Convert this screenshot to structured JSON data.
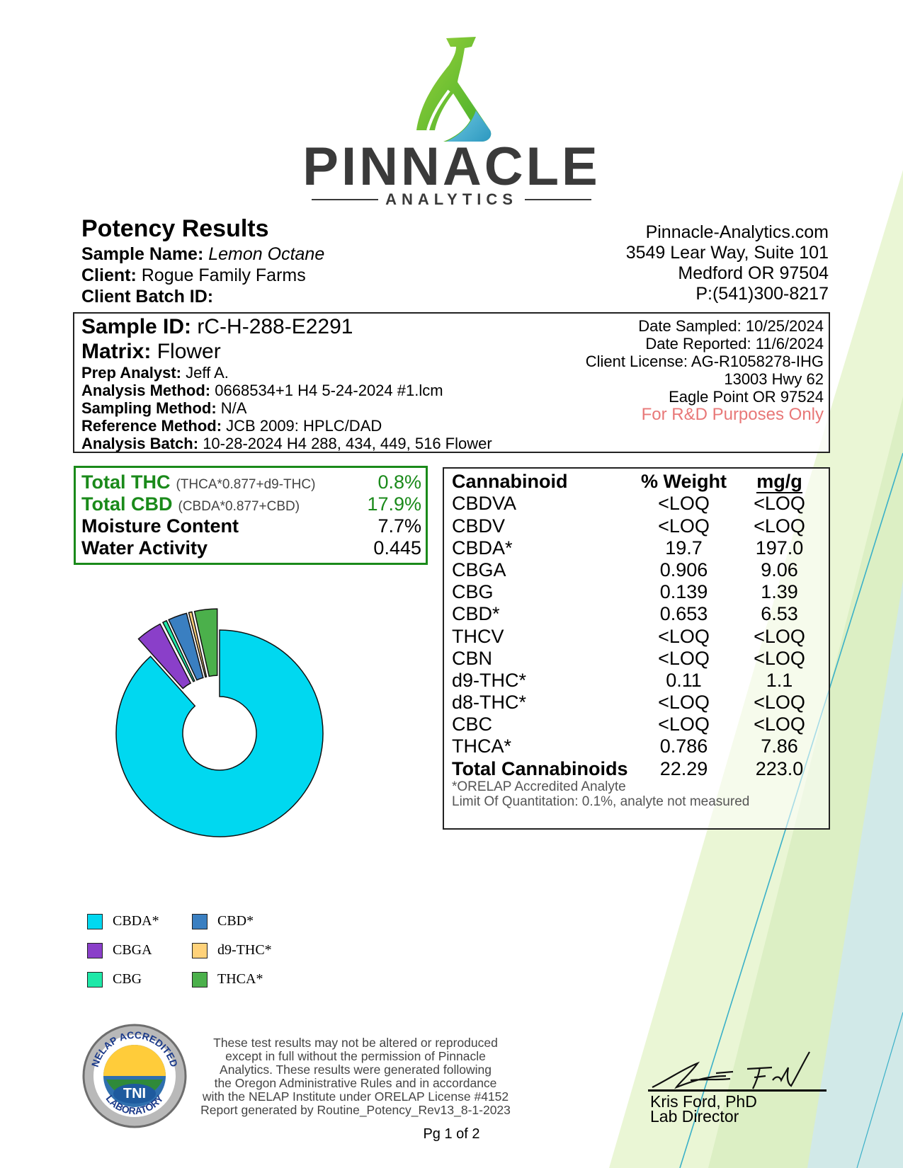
{
  "brand": {
    "name": "PINNACLE",
    "subtitle": "ANALYTICS"
  },
  "report": {
    "title": "Potency Results",
    "sample_name_label": "Sample Name:",
    "sample_name": "Lemon Octane",
    "client_label": "Client:",
    "client": "Rogue Family Farms",
    "client_batch_label": "Client Batch ID:",
    "client_batch": ""
  },
  "lab_address": {
    "website": "Pinnacle-Analytics.com",
    "street": "3549 Lear Way, Suite 101",
    "city": "Medford OR 97504",
    "phone": "P:(541)300-8217"
  },
  "sample": {
    "id_label": "Sample ID:",
    "id": "rC-H-288-E2291",
    "matrix_label": "Matrix:",
    "matrix": "Flower",
    "prep_label": "Prep Analyst:",
    "prep": "Jeff A.",
    "method_label": "Analysis Method:",
    "method": "0668534+1 H4 5-24-2024 #1.lcm",
    "sampling_label": "Sampling Method:",
    "sampling": "N/A",
    "reference_label": "Reference Method:",
    "reference": "JCB 2009: HPLC/DAD",
    "batch_label": "Analysis Batch:",
    "batch": "10-28-2024 H4 288, 434, 449, 516 Flower",
    "date_sampled_label": "Date Sampled:",
    "date_sampled": "10/25/2024",
    "date_reported_label": "Date Reported:",
    "date_reported": "11/6/2024",
    "license_label": "Client License:",
    "license": "AG-R1058278-IHG",
    "client_street": "13003 Hwy 62",
    "client_city": "Eagle Point OR 97524",
    "rd_note": "For R&D Purposes Only"
  },
  "summary": {
    "thc_label": "Total THC",
    "thc_formula": "(THCA*0.877+d9-THC)",
    "thc_value": "0.8%",
    "cbd_label": "Total CBD",
    "cbd_formula": "(CBDA*0.877+CBD)",
    "cbd_value": "17.9%",
    "moisture_label": "Moisture Content",
    "moisture_value": "7.7%",
    "water_label": "Water Activity",
    "water_value": "0.445"
  },
  "table": {
    "headers": [
      "Cannabinoid",
      "% Weight",
      "mg/g"
    ],
    "rows": [
      [
        "CBDVA",
        "<LOQ",
        "<LOQ"
      ],
      [
        "CBDV",
        "<LOQ",
        "<LOQ"
      ],
      [
        "CBDA*",
        "19.7",
        "197.0"
      ],
      [
        "CBGA",
        "0.906",
        "9.06"
      ],
      [
        "CBG",
        "0.139",
        "1.39"
      ],
      [
        "CBD*",
        "0.653",
        "6.53"
      ],
      [
        "THCV",
        "<LOQ",
        "<LOQ"
      ],
      [
        "CBN",
        "<LOQ",
        "<LOQ"
      ],
      [
        "d9-THC*",
        "0.11",
        "1.1"
      ],
      [
        "d8-THC*",
        "<LOQ",
        "<LOQ"
      ],
      [
        "CBC",
        "<LOQ",
        "<LOQ"
      ],
      [
        "THCA*",
        "0.786",
        "7.86"
      ]
    ],
    "total": [
      "Total Cannabinoids",
      "22.29",
      "223.0"
    ],
    "note_accredited": "*ORELAP Accredited Analyte",
    "note_loq": "Limit Of Quantitation: 0.1%, analyte not measured"
  },
  "chart_data": {
    "type": "pie",
    "categories": [
      "CBDA*",
      "CBGA",
      "CBG",
      "CBD*",
      "d9-THC*",
      "THCA*"
    ],
    "values": [
      19.7,
      0.906,
      0.139,
      0.653,
      0.11,
      0.786
    ],
    "colors": [
      "#00d8f0",
      "#8a3fc9",
      "#1ee8a8",
      "#3a7fc1",
      "#ffd27a",
      "#4bb04b"
    ],
    "donut": true,
    "exploded": [
      "CBGA",
      "CBG",
      "CBD*",
      "d9-THC*",
      "THCA*"
    ],
    "legend_position": "bottom-left"
  },
  "footer": {
    "disclaimer": [
      "These test results may not be altered or reproduced",
      "except in full without the permission of Pinnacle",
      "Analytics. These results were generated following",
      "the Oregon Administrative Rules and in accordance",
      "with the NELAP Institute under ORELAP License #4152",
      "Report generated by Routine_Potency_Rev13_8-1-2023"
    ],
    "signer_name": "Kris Ford, PhD",
    "signer_title": "Lab Director",
    "page": "Pg 1 of 2",
    "seal_top": "NELAP ACCREDITED",
    "seal_center": "TNI",
    "seal_bottom": "LABORATORY"
  }
}
